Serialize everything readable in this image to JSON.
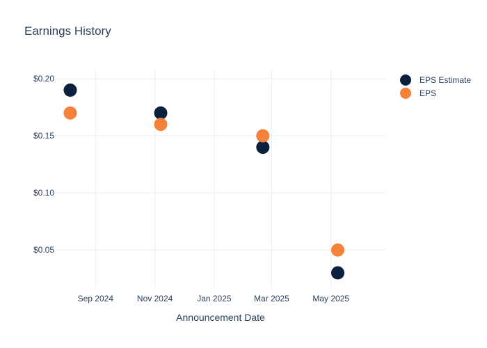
{
  "chart_data": {
    "type": "scatter",
    "title": "Earnings History",
    "xlabel": "Announcement Date",
    "ylabel": "",
    "x_ticks": [
      "Sep 2024",
      "Nov 2024",
      "Jan 2025",
      "Mar 2025",
      "May 2025"
    ],
    "y_ticks": [
      "$0.20",
      "$0.15",
      "$0.10",
      "$0.05"
    ],
    "ylim": [
      0.016,
      0.208
    ],
    "xlim": [
      "2024-07-22",
      "2025-06-26"
    ],
    "grid": true,
    "legend_position": "top-right",
    "series": [
      {
        "name": "EPS Estimate",
        "color": "#0b1f3f",
        "points": [
          {
            "x": "2024-08-06",
            "y": 0.19
          },
          {
            "x": "2024-11-07",
            "y": 0.17
          },
          {
            "x": "2025-02-20",
            "y": 0.14
          },
          {
            "x": "2025-05-08",
            "y": 0.03
          }
        ]
      },
      {
        "name": "EPS",
        "color": "#f5813a",
        "points": [
          {
            "x": "2024-08-06",
            "y": 0.17
          },
          {
            "x": "2024-11-07",
            "y": 0.16
          },
          {
            "x": "2025-02-20",
            "y": 0.15
          },
          {
            "x": "2025-05-08",
            "y": 0.05
          }
        ]
      }
    ]
  }
}
